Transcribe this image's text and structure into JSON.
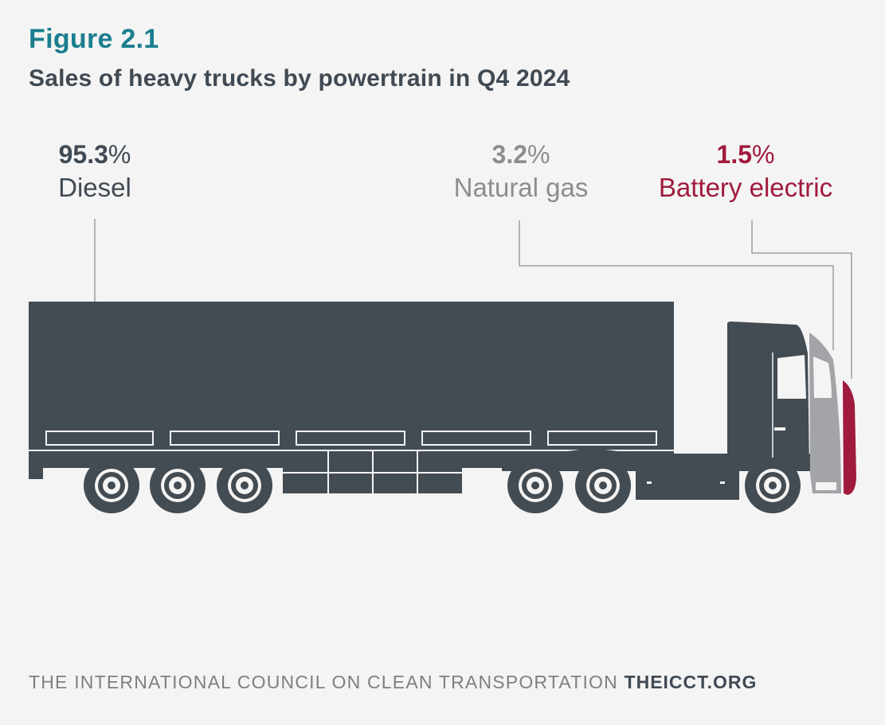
{
  "figure": {
    "label": "Figure 2.1",
    "title": "Sales of heavy trucks by powertrain in Q4 2024"
  },
  "chart_data": {
    "type": "pie",
    "title": "Sales of heavy trucks by powertrain in Q4 2024",
    "unit": "%",
    "categories": [
      "Diesel",
      "Natural gas",
      "Battery electric"
    ],
    "values": [
      95.3,
      3.2,
      1.5
    ],
    "labels": [
      {
        "value": "95.3",
        "sign": "%",
        "name": "Diesel"
      },
      {
        "value": "3.2",
        "sign": "%",
        "name": "Natural gas"
      },
      {
        "value": "1.5",
        "sign": "%",
        "name": "Battery electric"
      }
    ],
    "colors": {
      "diesel": "#434b53",
      "natural_gas": "#a3a4a8",
      "battery_electric": "#a01a3d"
    }
  },
  "footer": {
    "org": "THE INTERNATIONAL COUNCIL ON CLEAN TRANSPORTATION",
    "site": "THEICCT.ORG"
  }
}
